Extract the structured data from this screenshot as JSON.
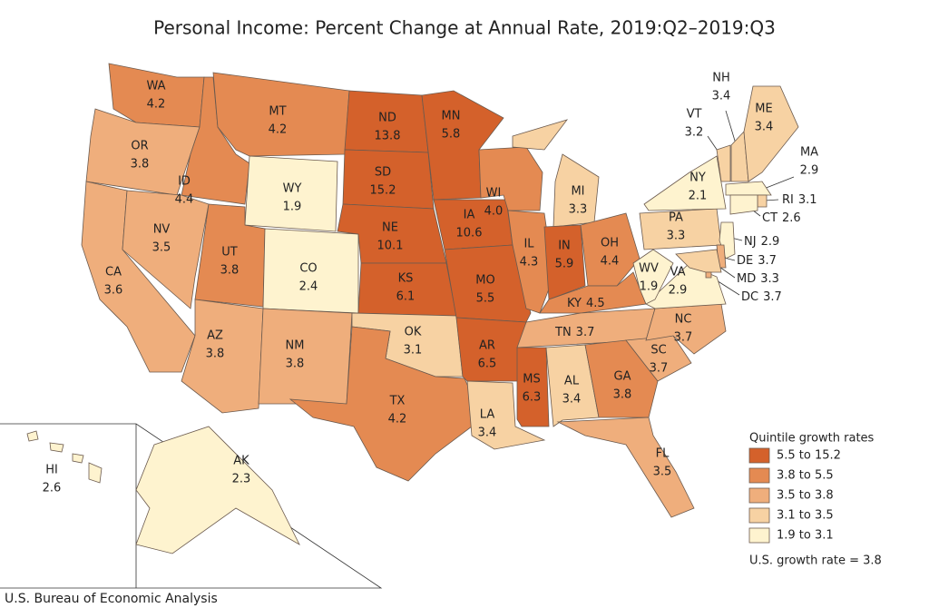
{
  "map": {
    "title": "Personal Income: Percent Change at Annual Rate, 2019:Q2–2019:Q3",
    "states": {
      "names": [
        "WA",
        "OR",
        "CA",
        "ID",
        "NV",
        "MT",
        "WY",
        "UT",
        "CO",
        "AZ",
        "NM",
        "ND",
        "SD",
        "NE",
        "KS",
        "OK",
        "TX",
        "MN",
        "IA",
        "MO",
        "AR",
        "LA",
        "WI",
        "IL",
        "MI",
        "IN",
        "OH",
        "KY",
        "TN",
        "MS",
        "AL",
        "GA",
        "FL",
        "SC",
        "NC",
        "VA",
        "WV",
        "PA",
        "NY",
        "VT",
        "NH",
        "ME",
        "MA",
        "RI",
        "CT",
        "NJ",
        "DE",
        "MD",
        "DC",
        "AK",
        "HI"
      ],
      "values": [
        4.2,
        3.8,
        3.6,
        4.4,
        3.5,
        4.2,
        1.9,
        3.8,
        2.4,
        3.8,
        3.8,
        13.8,
        15.2,
        10.1,
        6.1,
        3.1,
        4.2,
        5.8,
        10.6,
        5.5,
        6.5,
        3.4,
        4.0,
        4.3,
        3.3,
        5.9,
        4.4,
        4.5,
        3.7,
        6.3,
        3.4,
        3.8,
        3.5,
        3.7,
        3.7,
        2.9,
        1.9,
        3.3,
        2.1,
        3.2,
        3.4,
        3.4,
        2.9,
        3.1,
        2.6,
        2.9,
        3.7,
        3.3,
        3.7,
        2.3,
        2.6
      ],
      "value_labels": [
        "4.2",
        "3.8",
        "3.6",
        "4.4",
        "3.5",
        "4.2",
        "1.9",
        "3.8",
        "2.4",
        "3.8",
        "3.8",
        "13.8",
        "15.2",
        "10.1",
        "6.1",
        "3.1",
        "4.2",
        "5.8",
        "10.6",
        "5.5",
        "6.5",
        "3.4",
        "4.0",
        "4.3",
        "3.3",
        "5.9",
        "4.4",
        "4.5",
        "3.7",
        "6.3",
        "3.4",
        "3.8",
        "3.5",
        "3.7",
        "3.7",
        "2.9",
        "1.9",
        "3.3",
        "2.1",
        "3.2",
        "3.4",
        "3.4",
        "2.9",
        "3.1",
        "2.6",
        "2.9",
        "3.7",
        "3.3",
        "3.7",
        "2.3",
        "2.6"
      ],
      "colors": [
        "#e48a52",
        "#efae7c",
        "#efae7c",
        "#e48a52",
        "#efae7c",
        "#e48a52",
        "#fef3cf",
        "#e48a52",
        "#fef3cf",
        "#efae7c",
        "#efae7c",
        "#d4612b",
        "#d4612b",
        "#d4612b",
        "#d4612b",
        "#f7d2a3",
        "#e48a52",
        "#d4612b",
        "#d4612b",
        "#d4612b",
        "#d4612b",
        "#f7d2a3",
        "#e48a52",
        "#e48a52",
        "#f7d2a3",
        "#d4612b",
        "#e48a52",
        "#e48a52",
        "#efae7c",
        "#d4612b",
        "#f7d2a3",
        "#e48a52",
        "#efae7c",
        "#efae7c",
        "#efae7c",
        "#fef3cf",
        "#fef3cf",
        "#f7d2a3",
        "#fef3cf",
        "#f7d2a3",
        "#f7d2a3",
        "#f7d2a3",
        "#fef3cf",
        "#f7d2a3",
        "#fef3cf",
        "#fef3cf",
        "#efae7c",
        "#f7d2a3",
        "#efae7c",
        "#fef3cf",
        "#fef3cf"
      ]
    },
    "legend": {
      "title": "Quintile growth rates",
      "bins": [
        {
          "label": "5.5 to 15.2",
          "color": "#d4612b"
        },
        {
          "label": "3.8 to 5.5",
          "color": "#e48a52"
        },
        {
          "label": "3.5 to 3.8",
          "color": "#efae7c"
        },
        {
          "label": "3.1 to 3.5",
          "color": "#f7d2a3"
        },
        {
          "label": "1.9 to 3.1",
          "color": "#fef3cf"
        }
      ],
      "note": "U.S. growth rate = 3.8"
    },
    "source": "U.S. Bureau of Economic Analysis"
  }
}
